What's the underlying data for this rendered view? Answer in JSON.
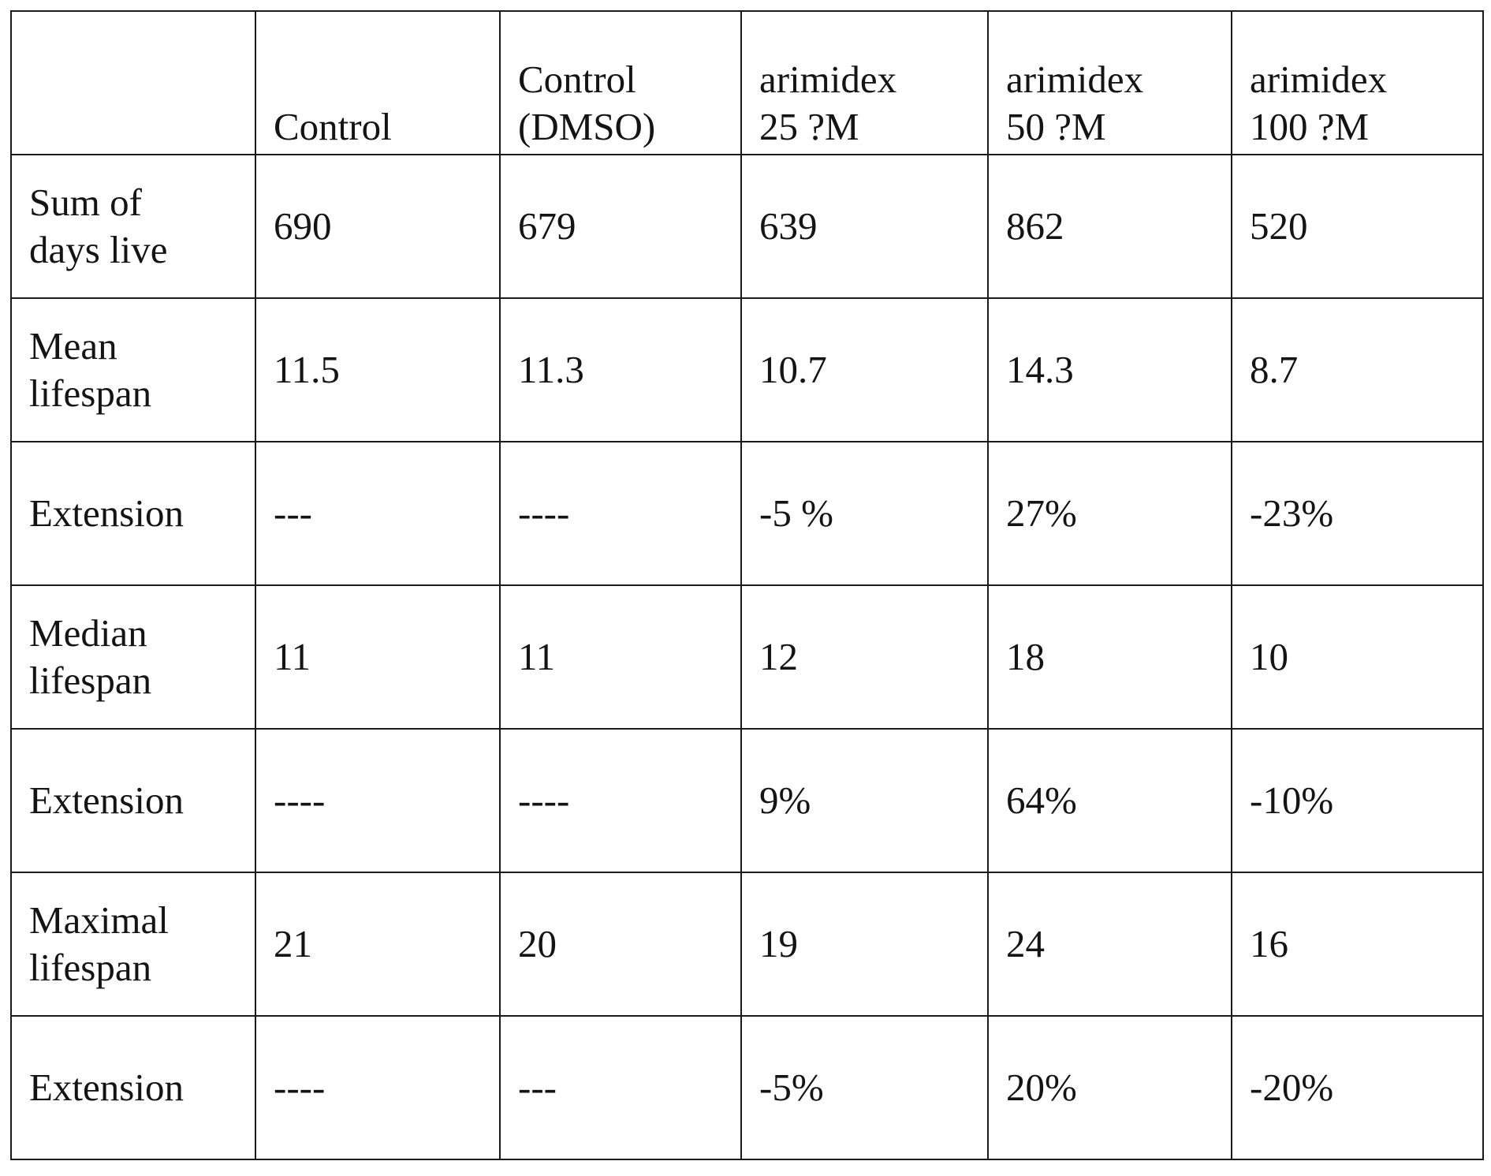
{
  "table": {
    "headers": [
      "",
      "Control",
      "Control\n(DMSO)",
      "arimidex\n25 ?M",
      "arimidex\n50 ?M",
      "arimidex\n100 ?M"
    ],
    "rows": [
      {
        "label": "Sum of\ndays live",
        "cells": [
          "690",
          "679",
          "639",
          "862",
          "520"
        ]
      },
      {
        "label": "Mean\nlifespan",
        "cells": [
          "11.5",
          "11.3",
          "10.7",
          "14.3",
          "8.7"
        ]
      },
      {
        "label": "Extension",
        "cells": [
          "---",
          "----",
          "-5 %",
          "27%",
          "-23%"
        ]
      },
      {
        "label": "Median\nlifespan",
        "cells": [
          "11",
          "11",
          "12",
          "18",
          "10"
        ]
      },
      {
        "label": "Extension",
        "cells": [
          "----",
          "----",
          "9%",
          "64%",
          "-10%"
        ]
      },
      {
        "label": "Maximal\nlifespan",
        "cells": [
          "21",
          "20",
          "19",
          "24",
          "16"
        ]
      },
      {
        "label": "Extension",
        "cells": [
          "----",
          "---",
          "-5%",
          "20%",
          "-20%"
        ]
      }
    ]
  }
}
